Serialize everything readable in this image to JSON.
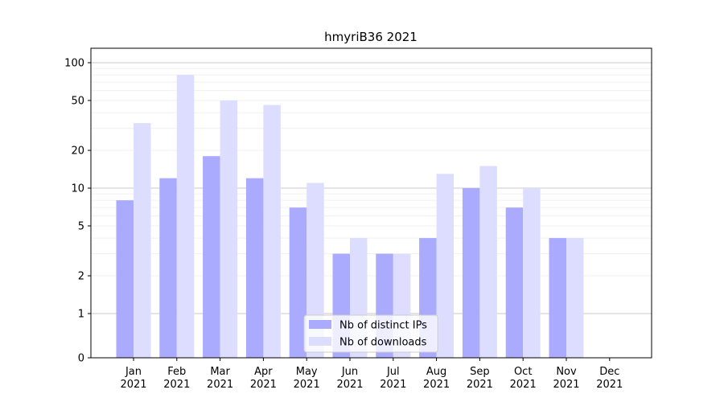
{
  "chart_data": {
    "type": "bar",
    "title": "hmyriB36 2021",
    "xlabel": "",
    "ylabel": "",
    "yscale": "symlog",
    "grid": "y",
    "legend_position": "bottom-center",
    "categories": [
      {
        "month": "Jan",
        "year": "2021"
      },
      {
        "month": "Feb",
        "year": "2021"
      },
      {
        "month": "Mar",
        "year": "2021"
      },
      {
        "month": "Apr",
        "year": "2021"
      },
      {
        "month": "May",
        "year": "2021"
      },
      {
        "month": "Jun",
        "year": "2021"
      },
      {
        "month": "Jul",
        "year": "2021"
      },
      {
        "month": "Aug",
        "year": "2021"
      },
      {
        "month": "Sep",
        "year": "2021"
      },
      {
        "month": "Oct",
        "year": "2021"
      },
      {
        "month": "Nov",
        "year": "2021"
      },
      {
        "month": "Dec",
        "year": "2021"
      }
    ],
    "yticks": [
      {
        "value": 0,
        "label": "0"
      },
      {
        "value": 1,
        "label": "1"
      },
      {
        "value": 2,
        "label": "2"
      },
      {
        "value": 5,
        "label": "5"
      },
      {
        "value": 10,
        "label": "10"
      },
      {
        "value": 20,
        "label": "20"
      },
      {
        "value": 50,
        "label": "50"
      },
      {
        "value": 100,
        "label": "100"
      }
    ],
    "series": [
      {
        "name": "Nb of distinct IPs",
        "color": "#aaaaff",
        "values": [
          8,
          12,
          18,
          12,
          7,
          3,
          3,
          4,
          10,
          7,
          4,
          0
        ]
      },
      {
        "name": "Nb of downloads",
        "color": "#ddddff",
        "values": [
          33,
          80,
          50,
          46,
          11,
          4,
          3,
          13,
          15,
          10,
          4,
          0
        ]
      }
    ]
  }
}
